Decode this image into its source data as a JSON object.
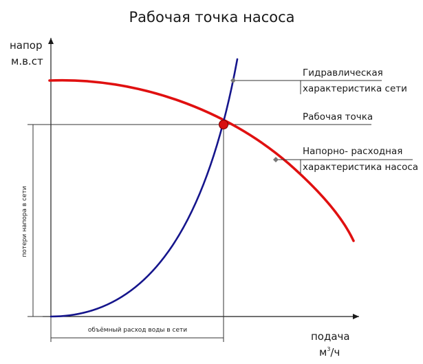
{
  "title": "Рабочая точка насоса",
  "y_axis": {
    "label_line1": "напор",
    "label_line2": "м.в.ст"
  },
  "x_axis": {
    "label_line1": "подача",
    "unit_base": "м",
    "unit_sup": "3",
    "unit_tail": "/ч"
  },
  "annotations": {
    "system_curve_line1": "Гидравлическая",
    "system_curve_line2": "характеристика сети",
    "operating_point": "Рабочая точка",
    "pump_curve_line1": "Напорно- расходная",
    "pump_curve_line2": "характеристика насоса"
  },
  "dimensions": {
    "head_loss": "потери напора в сети",
    "flow_rate": "объёмный расход воды в сети"
  },
  "colors": {
    "pump_curve": "#e01010",
    "system_curve": "#15158c",
    "operating_point": "#d81010",
    "axes": "#1a1a1a",
    "guides": "#333333"
  }
}
